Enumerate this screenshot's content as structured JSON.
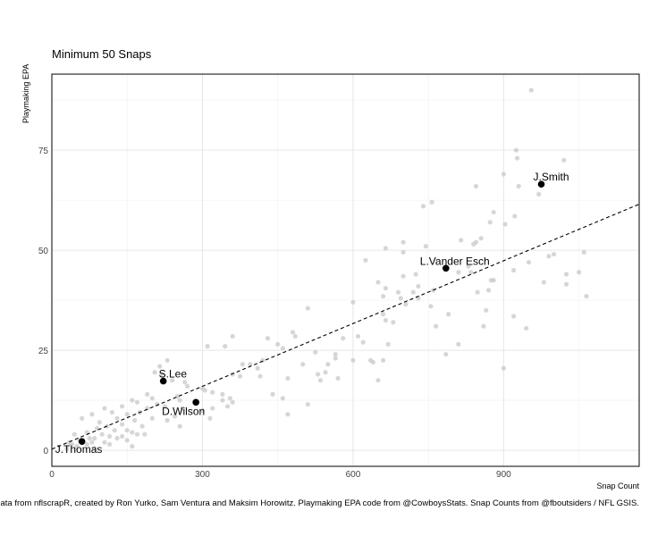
{
  "chart_data": {
    "type": "scatter",
    "subtitle": "Minimum 50 Snaps",
    "xlabel": "Snap Count",
    "ylabel": "Playmaking EPA",
    "caption": "Data from nflscrapR, created by Ron Yurko, Sam Ventura and Maksim Horowitz. Playmaking EPA code from @CowboysStats. Snap Counts from @fboutsiders / NFL GSIS.",
    "xlim": [
      0,
      1170
    ],
    "ylim": [
      -4,
      94
    ],
    "xticks": [
      0,
      300,
      600,
      900
    ],
    "yticks": [
      0,
      25,
      50,
      75
    ],
    "grid": true,
    "trendline": {
      "x": [
        0,
        1170
      ],
      "y": [
        0.3,
        61.5
      ],
      "style": "dashed"
    },
    "highlighted": [
      {
        "label": "J.Smith",
        "x": 975,
        "y": 66.5
      },
      {
        "label": "L.Vander Esch",
        "x": 785,
        "y": 45.5
      },
      {
        "label": "S.Lee",
        "x": 222,
        "y": 17.3
      },
      {
        "label": "D.Wilson",
        "x": 287,
        "y": 12
      },
      {
        "label": "J.Thomas",
        "x": 60,
        "y": 2.2
      }
    ],
    "points": [
      [
        955,
        90
      ],
      [
        925,
        75
      ],
      [
        927,
        73
      ],
      [
        1020,
        72.5
      ],
      [
        900,
        69
      ],
      [
        845,
        66
      ],
      [
        930,
        66
      ],
      [
        970,
        64
      ],
      [
        740,
        61
      ],
      [
        757,
        62
      ],
      [
        880,
        59.5
      ],
      [
        922,
        58.5
      ],
      [
        873,
        57
      ],
      [
        903,
        56.5
      ],
      [
        855,
        53
      ],
      [
        815,
        52.5
      ],
      [
        845,
        52
      ],
      [
        840,
        51.5
      ],
      [
        700,
        52
      ],
      [
        745,
        51
      ],
      [
        665,
        50.5
      ],
      [
        700,
        49.5
      ],
      [
        1000,
        49
      ],
      [
        990,
        48.5
      ],
      [
        1060,
        49.5
      ],
      [
        625,
        47.5
      ],
      [
        950,
        47
      ],
      [
        830,
        46
      ],
      [
        835,
        44.5
      ],
      [
        920,
        45
      ],
      [
        810,
        44.5
      ],
      [
        725,
        44
      ],
      [
        1025,
        44
      ],
      [
        1050,
        44.5
      ],
      [
        700,
        43.5
      ],
      [
        650,
        42
      ],
      [
        730,
        41
      ],
      [
        875,
        42.5
      ],
      [
        880,
        42.5
      ],
      [
        980,
        42
      ],
      [
        1025,
        41.5
      ],
      [
        665,
        40.5
      ],
      [
        690,
        39.5
      ],
      [
        720,
        39.5
      ],
      [
        760,
        40
      ],
      [
        848,
        39.5
      ],
      [
        870,
        40
      ],
      [
        660,
        38.5
      ],
      [
        695,
        38
      ],
      [
        730,
        38
      ],
      [
        1065,
        38.5
      ],
      [
        600,
        37
      ],
      [
        705,
        36.5
      ],
      [
        755,
        36
      ],
      [
        865,
        35
      ],
      [
        510,
        35.5
      ],
      [
        660,
        34
      ],
      [
        790,
        34
      ],
      [
        920,
        33.5
      ],
      [
        665,
        32.5
      ],
      [
        680,
        32
      ],
      [
        765,
        31
      ],
      [
        860,
        31
      ],
      [
        945,
        30.5
      ],
      [
        480,
        29.5
      ],
      [
        485,
        28.5
      ],
      [
        580,
        28
      ],
      [
        610,
        28.5
      ],
      [
        360,
        28.5
      ],
      [
        430,
        28
      ],
      [
        620,
        27
      ],
      [
        670,
        26.5
      ],
      [
        310,
        26
      ],
      [
        345,
        26
      ],
      [
        810,
        26.5
      ],
      [
        450,
        26.5
      ],
      [
        460,
        25.5
      ],
      [
        525,
        24.5
      ],
      [
        565,
        24
      ],
      [
        565,
        23
      ],
      [
        785,
        24
      ],
      [
        600,
        22.5
      ],
      [
        635,
        22.5
      ],
      [
        640,
        22
      ],
      [
        660,
        22.5
      ],
      [
        550,
        21.5
      ],
      [
        500,
        21.5
      ],
      [
        380,
        21.5
      ],
      [
        395,
        21.5
      ],
      [
        420,
        22.5
      ],
      [
        410,
        20.5
      ],
      [
        900,
        20.5
      ],
      [
        545,
        19.5
      ],
      [
        530,
        19
      ],
      [
        360,
        19
      ],
      [
        375,
        18.5
      ],
      [
        415,
        18.5
      ],
      [
        470,
        18
      ],
      [
        535,
        17.5
      ],
      [
        570,
        18
      ],
      [
        650,
        17.5
      ],
      [
        215,
        21
      ],
      [
        230,
        22.5
      ],
      [
        205,
        19.5
      ],
      [
        218,
        19
      ],
      [
        240,
        17.5
      ],
      [
        265,
        17
      ],
      [
        270,
        16
      ],
      [
        300,
        15.5
      ],
      [
        305,
        15
      ],
      [
        320,
        14.5
      ],
      [
        340,
        14
      ],
      [
        190,
        14
      ],
      [
        200,
        13
      ],
      [
        250,
        13.5
      ],
      [
        255,
        12.5
      ],
      [
        340,
        12.5
      ],
      [
        355,
        13
      ],
      [
        440,
        14
      ],
      [
        460,
        13
      ],
      [
        210,
        11.5
      ],
      [
        225,
        11
      ],
      [
        260,
        10.5
      ],
      [
        300,
        10
      ],
      [
        320,
        10.5
      ],
      [
        350,
        11
      ],
      [
        360,
        12
      ],
      [
        510,
        11.5
      ],
      [
        160,
        12.5
      ],
      [
        170,
        12
      ],
      [
        190,
        10.5
      ],
      [
        140,
        11
      ],
      [
        105,
        10.5
      ],
      [
        120,
        9.5
      ],
      [
        80,
        9
      ],
      [
        150,
        9
      ],
      [
        175,
        9.5
      ],
      [
        200,
        8
      ],
      [
        230,
        7.5
      ],
      [
        245,
        8.5
      ],
      [
        315,
        8
      ],
      [
        470,
        9
      ],
      [
        130,
        8
      ],
      [
        165,
        7.5
      ],
      [
        60,
        8
      ],
      [
        95,
        7
      ],
      [
        140,
        6.5
      ],
      [
        180,
        6
      ],
      [
        110,
        6
      ],
      [
        90,
        5.5
      ],
      [
        125,
        5
      ],
      [
        150,
        5
      ],
      [
        160,
        4.5
      ],
      [
        170,
        4
      ],
      [
        185,
        4
      ],
      [
        70,
        4.5
      ],
      [
        45,
        4
      ],
      [
        115,
        3.5
      ],
      [
        85,
        3
      ],
      [
        130,
        3
      ],
      [
        150,
        2.5
      ],
      [
        105,
        2
      ],
      [
        80,
        2
      ],
      [
        70,
        1.5
      ],
      [
        40,
        1.5
      ],
      [
        160,
        1
      ],
      [
        50,
        1
      ],
      [
        30,
        0.5
      ],
      [
        85,
        0.5
      ],
      [
        115,
        1.5
      ],
      [
        75,
        3
      ],
      [
        55,
        2.5
      ],
      [
        255,
        6
      ],
      [
        100,
        4
      ],
      [
        140,
        3.5
      ],
      [
        35,
        2
      ]
    ]
  }
}
